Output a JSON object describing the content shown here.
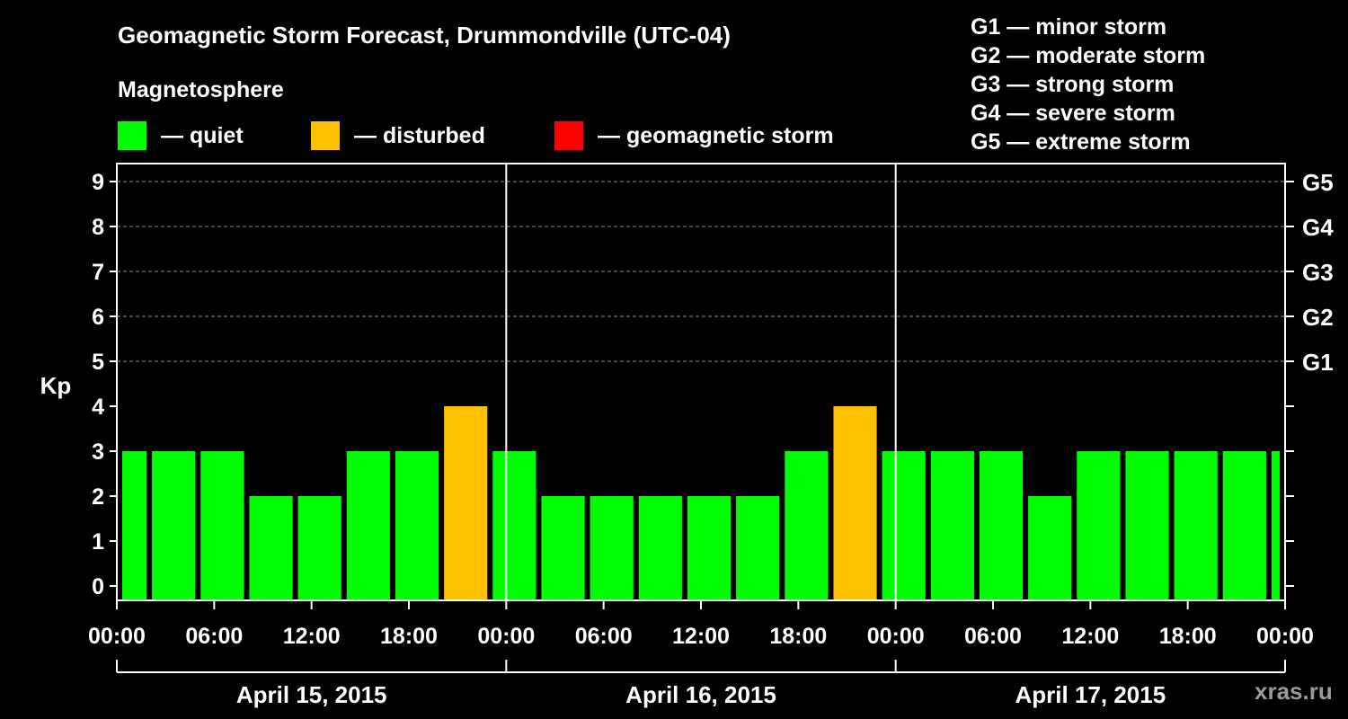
{
  "title": "Geomagnetic Storm Forecast, Drummondville (UTC-04)",
  "legend": {
    "heading": "Magnetosphere",
    "items": [
      {
        "label": "— quiet",
        "color": "#00ff00"
      },
      {
        "label": "— disturbed",
        "color": "#ffc000"
      },
      {
        "label": "— geomagnetic storm",
        "color": "#ff0000"
      }
    ]
  },
  "storm_scale": [
    "G1 — minor storm",
    "G2 — moderate storm",
    "G3 — strong storm",
    "G4 — severe storm",
    "G5 — extreme storm"
  ],
  "watermark": "xras.ru",
  "chart_data": {
    "type": "bar",
    "ylabel": "Kp",
    "ylim": [
      0,
      9
    ],
    "yticks": [
      0,
      1,
      2,
      3,
      4,
      5,
      6,
      7,
      8,
      9
    ],
    "right_axis_labels": [
      {
        "kp": 5,
        "label": "G1"
      },
      {
        "kp": 6,
        "label": "G2"
      },
      {
        "kp": 7,
        "label": "G3"
      },
      {
        "kp": 8,
        "label": "G4"
      },
      {
        "kp": 9,
        "label": "G5"
      }
    ],
    "x_range_hours": [
      0,
      72
    ],
    "xtick_hours": [
      0,
      6,
      12,
      18,
      24,
      30,
      36,
      42,
      48,
      54,
      60,
      66,
      72
    ],
    "xtick_labels": [
      "00:00",
      "06:00",
      "12:00",
      "18:00",
      "00:00",
      "06:00",
      "12:00",
      "18:00",
      "00:00",
      "06:00",
      "12:00",
      "18:00",
      "00:00"
    ],
    "day_separators_hours": [
      24,
      48
    ],
    "days": [
      {
        "label": "April 15, 2015",
        "start_hour": 0,
        "end_hour": 24
      },
      {
        "label": "April 16, 2015",
        "start_hour": 24,
        "end_hour": 48
      },
      {
        "label": "April 17, 2015",
        "start_hour": 48,
        "end_hour": 72
      }
    ],
    "bar_interval_hours": 3,
    "first_bar_start_hour": -1,
    "values": [
      3,
      3,
      3,
      2,
      2,
      3,
      3,
      4,
      3,
      2,
      2,
      2,
      2,
      2,
      3,
      4,
      3,
      3,
      3,
      2,
      3,
      3,
      3,
      3,
      3
    ],
    "color_thresholds": {
      "disturbed_at_or_above": 4,
      "storm_at_or_above": 5
    }
  }
}
